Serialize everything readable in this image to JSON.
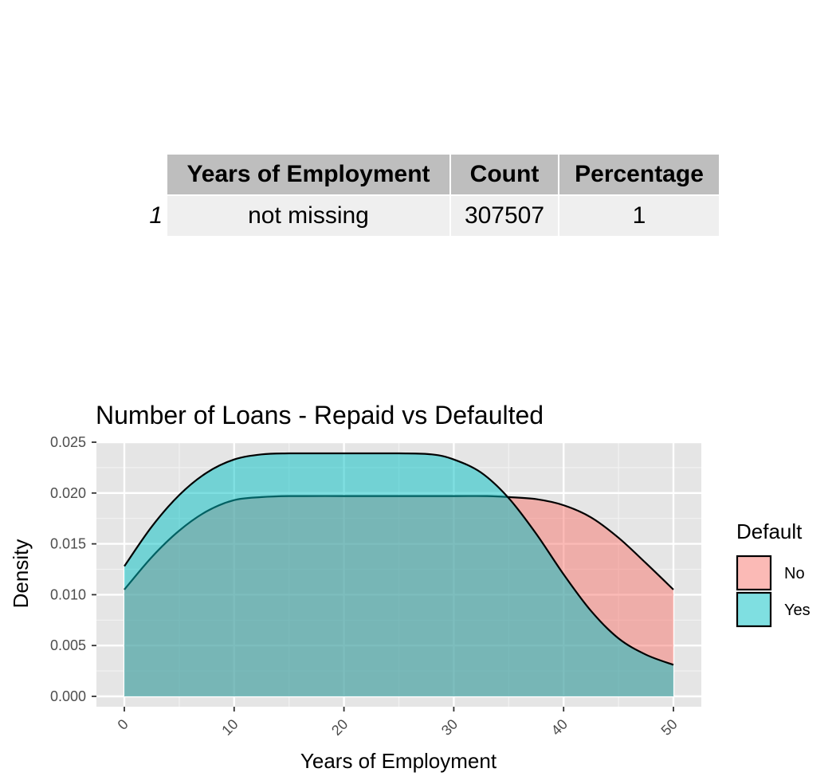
{
  "table": {
    "headers": [
      "Years of Employment",
      "Count",
      "Percentage"
    ],
    "rows": [
      {
        "rowname": "1",
        "cells": [
          "not missing",
          "307507",
          "1"
        ]
      }
    ]
  },
  "chart_data": {
    "type": "area",
    "title": "Number of Loans - Repaid vs Defaulted",
    "xlabel": "Years of Employment",
    "ylabel": "Density",
    "xlim": [
      0,
      50
    ],
    "ylim": [
      0,
      0.025
    ],
    "x_ticks": [
      0,
      10,
      20,
      30,
      40,
      50
    ],
    "y_ticks": [
      0.0,
      0.005,
      0.01,
      0.015,
      0.02,
      0.025
    ],
    "y_tick_labels": [
      "0.000",
      "0.005",
      "0.010",
      "0.015",
      "0.020",
      "0.025"
    ],
    "grid": true,
    "legend": {
      "title": "Default",
      "position": "right"
    },
    "series": [
      {
        "name": "No",
        "color": "#F8766D",
        "x": [
          0,
          2.5,
          5,
          7.5,
          10,
          12.5,
          15,
          20,
          25,
          30,
          33,
          35,
          37.5,
          40,
          42.5,
          45,
          47.5,
          50
        ],
        "values": [
          0.0105,
          0.0137,
          0.0163,
          0.0182,
          0.0193,
          0.0196,
          0.0197,
          0.0197,
          0.0197,
          0.0197,
          0.0197,
          0.0196,
          0.0194,
          0.0188,
          0.0176,
          0.0156,
          0.0131,
          0.0105
        ]
      },
      {
        "name": "Yes",
        "color": "#00BFC4",
        "x": [
          0,
          2.5,
          5,
          7.5,
          10,
          12.5,
          15,
          20,
          25,
          28,
          30,
          32.5,
          35,
          37.5,
          40,
          42.5,
          45,
          47.5,
          50
        ],
        "values": [
          0.0128,
          0.0167,
          0.0198,
          0.022,
          0.0233,
          0.0238,
          0.0239,
          0.0239,
          0.0239,
          0.0238,
          0.0233,
          0.022,
          0.0195,
          0.016,
          0.012,
          0.0084,
          0.0057,
          0.0041,
          0.0031
        ]
      }
    ]
  }
}
